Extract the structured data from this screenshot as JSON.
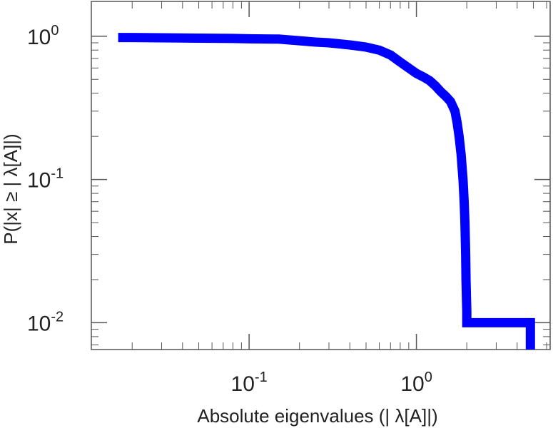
{
  "chart_data": {
    "type": "line",
    "xscale": "log",
    "yscale": "log",
    "xlim": [
      0.0114,
      6.3
    ],
    "ylim": [
      0.0065,
      1.75
    ],
    "xlabel": "Absolute eigenvalues (|     λ[A]|)",
    "ylabel": "P(|x|  ≥ | λ[A]|)",
    "x_ticks": [
      {
        "value": 0.1,
        "base": "10",
        "exp": "-1"
      },
      {
        "value": 1.0,
        "base": "10",
        "exp": "0"
      }
    ],
    "y_ticks": [
      {
        "value": 1.0,
        "base": "10",
        "exp": "0"
      },
      {
        "value": 0.1,
        "base": "10",
        "exp": "-1"
      },
      {
        "value": 0.01,
        "base": "10",
        "exp": "-2"
      }
    ],
    "grid": false,
    "line_color": "#0000ff",
    "series": [
      {
        "x": [
          0.0165,
          0.02,
          0.03,
          0.05,
          0.08,
          0.1,
          0.15,
          0.2,
          0.25,
          0.3,
          0.4,
          0.5,
          0.6,
          0.7,
          0.8,
          0.9,
          1.0,
          1.1,
          1.2,
          1.3,
          1.4,
          1.5,
          1.6,
          1.7,
          1.75,
          1.8,
          1.85,
          1.9,
          1.93,
          1.95,
          1.97,
          1.98,
          1.99,
          2.0,
          2.0,
          4.8,
          4.8
        ],
        "y": [
          0.98,
          0.98,
          0.975,
          0.97,
          0.965,
          0.96,
          0.955,
          0.93,
          0.91,
          0.9,
          0.87,
          0.84,
          0.8,
          0.74,
          0.66,
          0.6,
          0.55,
          0.52,
          0.49,
          0.45,
          0.41,
          0.38,
          0.35,
          0.3,
          0.25,
          0.2,
          0.15,
          0.1,
          0.07,
          0.05,
          0.03,
          0.02,
          0.015,
          0.012,
          0.01,
          0.01,
          0.0065
        ]
      }
    ]
  }
}
